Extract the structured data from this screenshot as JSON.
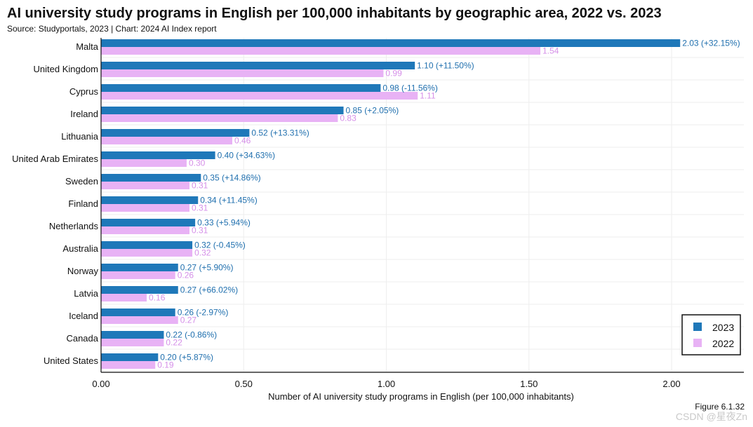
{
  "header": {
    "title": "AI university study programs in English per 100,000 inhabitants by geographic area, 2022 vs. 2023",
    "subtitle": "Source: Studyportals, 2023 | Chart: 2024 AI Index report"
  },
  "footer": {
    "figure_label": "Figure 6.1.32",
    "watermark": "CSDN @星夜Zn"
  },
  "colors": {
    "series_2023": "#1f78b9",
    "series_2022": "#e8b2f5",
    "label_2023": "#1f6fae",
    "label_2022": "#d58fe8",
    "grid": "#eeeeee"
  },
  "chart_data": {
    "type": "bar",
    "orientation": "horizontal",
    "title": "AI university study programs in English per 100,000 inhabitants by geographic area, 2022 vs. 2023",
    "subtitle": "Source: Studyportals, 2023 | Chart: 2024 AI Index report",
    "xlabel": "Number of AI university study programs in English (per 100,000 inhabitants)",
    "ylabel": "",
    "xlim": [
      0,
      2.2
    ],
    "xticks": [
      0,
      0.5,
      1.0,
      1.5,
      2.0
    ],
    "xtick_labels": [
      "0.00",
      "0.50",
      "1.00",
      "1.50",
      "2.00"
    ],
    "grid": true,
    "legend": "bottom-right",
    "categories": [
      "Malta",
      "United Kingdom",
      "Cyprus",
      "Ireland",
      "Lithuania",
      "United Arab Emirates",
      "Sweden",
      "Finland",
      "Netherlands",
      "Australia",
      "Norway",
      "Latvia",
      "Iceland",
      "Canada",
      "United States"
    ],
    "series": [
      {
        "name": "2023",
        "values": [
          2.03,
          1.1,
          0.98,
          0.85,
          0.52,
          0.4,
          0.35,
          0.34,
          0.33,
          0.32,
          0.27,
          0.27,
          0.26,
          0.22,
          0.2
        ],
        "labels": [
          "2.03 (+32.15%)",
          "1.10 (+11.50%)",
          "0.98 (-11.56%)",
          "0.85 (+2.05%)",
          "0.52 (+13.31%)",
          "0.40 (+34.63%)",
          "0.35 (+14.86%)",
          "0.34 (+11.45%)",
          "0.33 (+5.94%)",
          "0.32 (-0.45%)",
          "0.27 (+5.90%)",
          "0.27 (+66.02%)",
          "0.26 (-2.97%)",
          "0.22 (-0.86%)",
          "0.20 (+5.87%)"
        ]
      },
      {
        "name": "2022",
        "values": [
          1.54,
          0.99,
          1.11,
          0.83,
          0.46,
          0.3,
          0.31,
          0.31,
          0.31,
          0.32,
          0.26,
          0.16,
          0.27,
          0.22,
          0.19
        ],
        "labels": [
          "1.54",
          "0.99",
          "1.11",
          "0.83",
          "0.46",
          "0.30",
          "0.31",
          "0.31",
          "0.31",
          "0.32",
          "0.26",
          "0.16",
          "0.27",
          "0.22",
          "0.19"
        ]
      }
    ]
  }
}
